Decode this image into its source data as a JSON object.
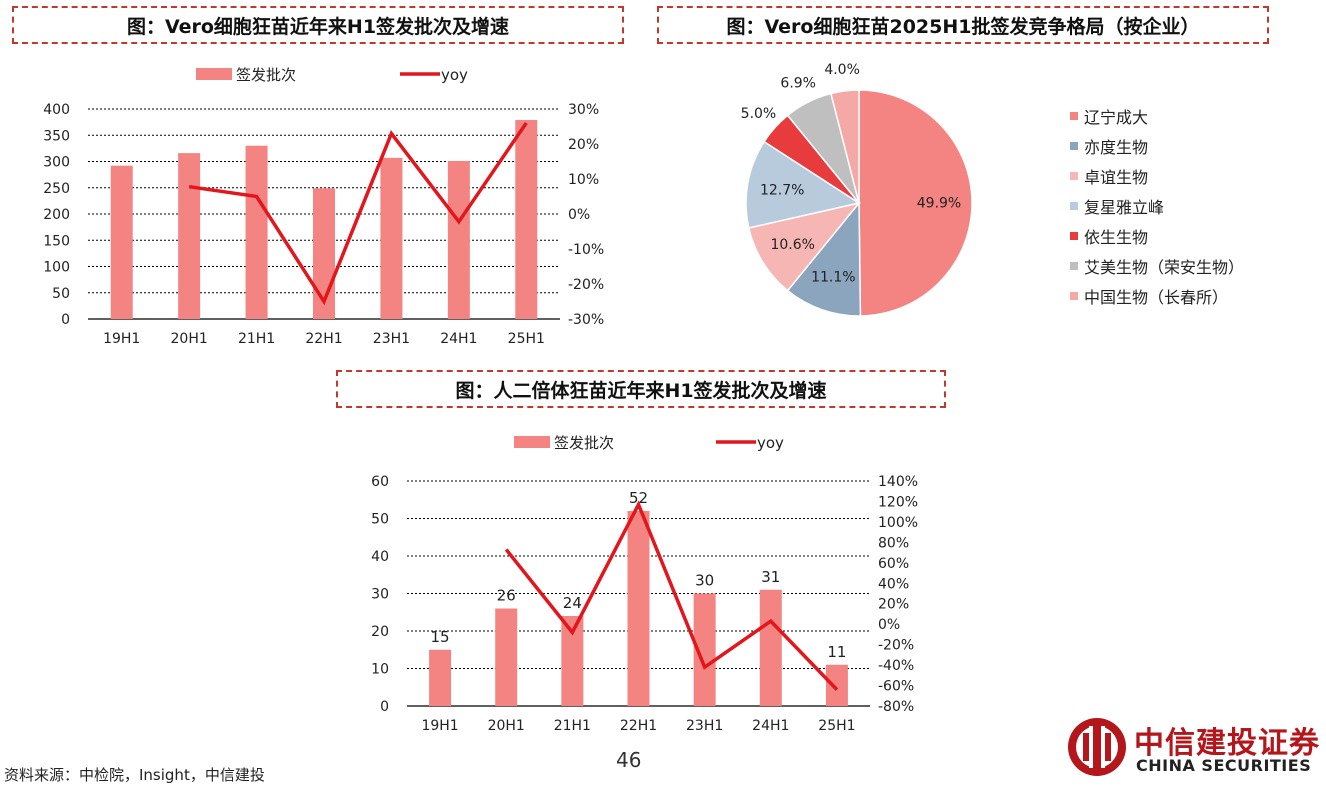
{
  "titles": {
    "chart1": "图：Vero细胞狂苗近年来H1签发批次及增速",
    "chart2": "图：Vero细胞狂苗2025H1批签发竞争格局（按企业）",
    "chart3": "图：人二倍体狂苗近年来H1签发批次及增速"
  },
  "colors": {
    "bar": "#f48482",
    "line": "#e2161d",
    "grid": "#000000",
    "title_border": "#c0392b"
  },
  "chart_data": [
    {
      "type": "bar",
      "title": "图：Vero细胞狂苗近年来H1签发批次及增速",
      "categories": [
        "19H1",
        "20H1",
        "21H1",
        "22H1",
        "23H1",
        "24H1",
        "25H1"
      ],
      "series": [
        {
          "name": "签发批次",
          "type": "bar",
          "axis": "left",
          "values": [
            292,
            316,
            330,
            249,
            307,
            301,
            379
          ]
        },
        {
          "name": "yoy",
          "type": "line",
          "axis": "right",
          "values": [
            null,
            7.8,
            5.0,
            -25,
            23,
            -2.2,
            26
          ]
        }
      ],
      "ylim": [
        0,
        400
      ],
      "y_ticks": [
        "0",
        "50",
        "100",
        "150",
        "200",
        "250",
        "300",
        "350",
        "400"
      ],
      "y2lim": [
        -30,
        30
      ],
      "y2_ticks": [
        "-30%",
        "-20%",
        "-10%",
        "0%",
        "10%",
        "20%",
        "30%"
      ],
      "grid": true,
      "legend": "top"
    },
    {
      "type": "pie",
      "title": "图：Vero细胞狂苗2025H1批签发竞争格局（按企业）",
      "labels": [
        "辽宁成大",
        "亦度生物",
        "卓谊生物",
        "复星雅立峰",
        "依生生物",
        "艾美生物（荣安生物）",
        "中国生物（长春所）"
      ],
      "values": [
        49.9,
        11.1,
        10.6,
        12.7,
        5.0,
        6.9,
        4.0
      ],
      "value_labels": [
        "49.9%",
        "11.1%",
        "10.6%",
        "12.7%",
        "5.0%",
        "6.9%",
        "4.0%"
      ],
      "colors": [
        "#f48482",
        "#8aa5bd",
        "#f6b6b4",
        "#b8cbdd",
        "#e73b3e",
        "#bfbfbf",
        "#f4a9a7"
      ],
      "legend": "right"
    },
    {
      "type": "bar",
      "title": "图：人二倍体狂苗近年来H1签发批次及增速",
      "categories": [
        "19H1",
        "20H1",
        "21H1",
        "22H1",
        "23H1",
        "24H1",
        "25H1"
      ],
      "series": [
        {
          "name": "签发批次",
          "type": "bar",
          "axis": "left",
          "values": [
            15,
            26,
            24,
            52,
            30,
            31,
            11
          ],
          "data_labels": [
            "15",
            "26",
            "24",
            "52",
            "30",
            "31",
            "11"
          ]
        },
        {
          "name": "yoy",
          "type": "line",
          "axis": "right",
          "values": [
            null,
            73,
            -8,
            117,
            -42,
            3,
            -64
          ]
        }
      ],
      "ylim": [
        0,
        60
      ],
      "y_ticks": [
        "0",
        "10",
        "20",
        "30",
        "40",
        "50",
        "60"
      ],
      "y2lim": [
        -80,
        140
      ],
      "y2_ticks": [
        "-80%",
        "-60%",
        "-40%",
        "-20%",
        "0%",
        "20%",
        "40%",
        "60%",
        "80%",
        "100%",
        "120%",
        "140%"
      ],
      "grid": true,
      "legend": "top"
    }
  ],
  "footer": {
    "source": "资料来源：中检院，Insight，中信建投",
    "page_number": "46"
  },
  "logo": {
    "name_cn": "中信建投证券",
    "name_en": "CHINA SECURITIES",
    "icon": "citic-logo-icon"
  }
}
